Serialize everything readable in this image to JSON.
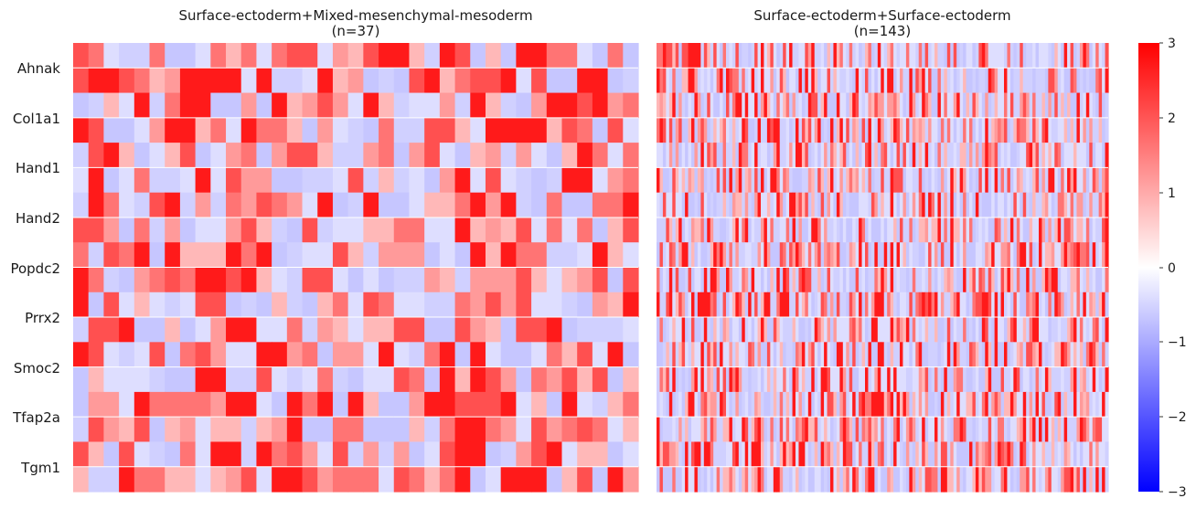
{
  "chart_data": {
    "type": "heatmap",
    "rows": [
      "Ahnak",
      "Col1a1",
      "Hand1",
      "Hand2",
      "Popdc2",
      "Prrx2",
      "Smoc2",
      "Tfap2a",
      "Tgm1"
    ],
    "panels": [
      {
        "title_line1": "Surface-ectoderm+Mixed-mesenchymal-mesoderm",
        "title_line2": "(n=37)",
        "n_cells": 37
      },
      {
        "title_line1": "Surface-ectoderm+Surface-ectoderm",
        "title_line2": "(n=143)",
        "n_cells": 143
      }
    ],
    "colorbar": {
      "range": [
        -3,
        3
      ],
      "ticks": [
        "3",
        "2",
        "1",
        "0",
        "−1",
        "−2",
        "−3"
      ],
      "colormap": "bwr",
      "low_color": "#0000ff",
      "mid_color": "#ffffff",
      "high_color": "#ff0000"
    },
    "row_separator_lines": true,
    "grid": false
  }
}
